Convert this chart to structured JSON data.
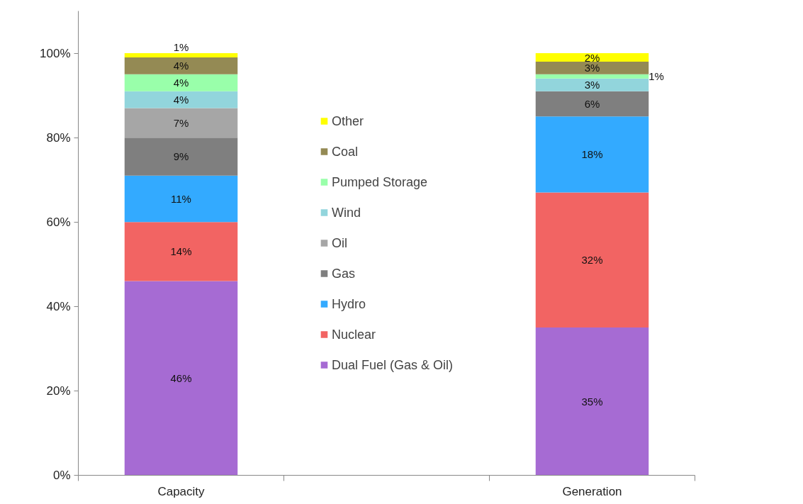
{
  "chart_data": {
    "type": "bar",
    "stacked": true,
    "categories": [
      "Capacity",
      null,
      "Generation"
    ],
    "series": [
      {
        "name": "Dual Fuel (Gas & Oil)",
        "color": "#a66bd3",
        "values": [
          46,
          null,
          35
        ],
        "value_labels": [
          "46%",
          null,
          "35%"
        ]
      },
      {
        "name": "Nuclear",
        "color": "#f26463",
        "values": [
          14,
          null,
          32
        ],
        "value_labels": [
          "14%",
          null,
          "32%"
        ]
      },
      {
        "name": "Hydro",
        "color": "#33aaff",
        "values": [
          11,
          null,
          18
        ],
        "value_labels": [
          "11%",
          null,
          "18%"
        ]
      },
      {
        "name": "Gas",
        "color": "#7f7f7f",
        "values": [
          9,
          null,
          6
        ],
        "value_labels": [
          "9%",
          null,
          "6%"
        ]
      },
      {
        "name": "Oil",
        "color": "#a6a6a6",
        "values": [
          7,
          null,
          null
        ],
        "value_labels": [
          "7%",
          null,
          null
        ]
      },
      {
        "name": "Wind",
        "color": "#92d5dc",
        "values": [
          4,
          null,
          3
        ],
        "value_labels": [
          "4%",
          null,
          "3%"
        ]
      },
      {
        "name": "Pumped Storage",
        "color": "#99ffaa",
        "values": [
          4,
          null,
          1
        ],
        "value_labels": [
          "4%",
          null,
          "1%"
        ]
      },
      {
        "name": "Coal",
        "color": "#948a54",
        "values": [
          4,
          null,
          3
        ],
        "value_labels": [
          "4%",
          null,
          "3%"
        ]
      },
      {
        "name": "Other",
        "color": "#ffff00",
        "values": [
          1,
          null,
          2
        ],
        "value_labels": [
          "1%",
          null,
          "2%"
        ]
      }
    ],
    "ylim": [
      0,
      110
    ],
    "yticks": [
      {
        "value": 0,
        "label": "0%"
      },
      {
        "value": 20,
        "label": "20%"
      },
      {
        "value": 40,
        "label": "40%"
      },
      {
        "value": 60,
        "label": "60%"
      },
      {
        "value": 80,
        "label": "80%"
      },
      {
        "value": 100,
        "label": "100%"
      }
    ],
    "grid": false,
    "legend": "center"
  }
}
